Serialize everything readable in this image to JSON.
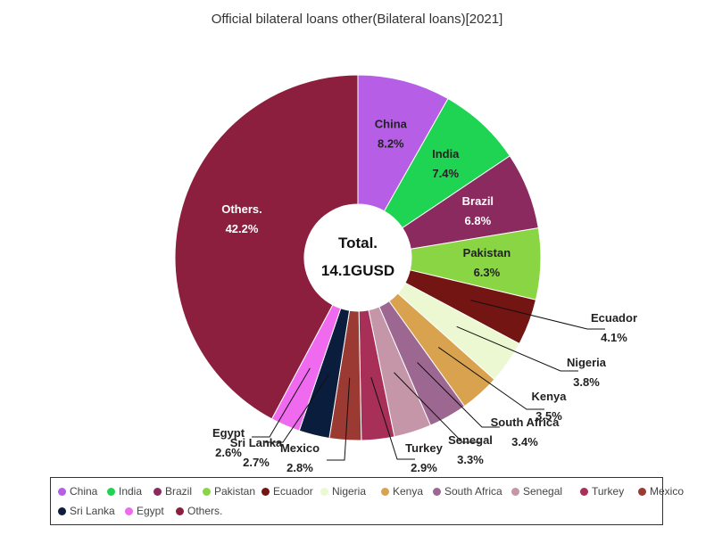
{
  "chart_data": {
    "type": "pie",
    "title": "Official bilateral loans other(Bilateral loans)[2021]",
    "center_label": "Total.",
    "center_value": "14.1GUSD",
    "legend_position": "bottom",
    "slices": [
      {
        "name": "China",
        "label": "China",
        "value": 8.2,
        "pct": "8.2%",
        "color": "#b65ee6"
      },
      {
        "name": "India",
        "label": "India",
        "value": 7.4,
        "pct": "7.4%",
        "color": "#1ed452"
      },
      {
        "name": "Brazil",
        "label": "Brazil",
        "value": 6.8,
        "pct": "6.8%",
        "color": "#8b2a5e"
      },
      {
        "name": "Pakistan",
        "label": "Pakistan",
        "value": 6.3,
        "pct": "6.3%",
        "color": "#8ad544"
      },
      {
        "name": "Ecuador",
        "label": "Ecuador",
        "value": 4.1,
        "pct": "4.1%",
        "color": "#731513"
      },
      {
        "name": "Nigeria",
        "label": "Nigeria",
        "value": 3.8,
        "pct": "3.8%",
        "color": "#ecf8d2"
      },
      {
        "name": "Kenya",
        "label": "Kenya",
        "value": 3.5,
        "pct": "3.5%",
        "color": "#d8a24e"
      },
      {
        "name": "South Africa",
        "label": "South Africa",
        "value": 3.4,
        "pct": "3.4%",
        "color": "#9c6891"
      },
      {
        "name": "Senegal",
        "label": "Senegal",
        "value": 3.3,
        "pct": "3.3%",
        "color": "#c595a8"
      },
      {
        "name": "Turkey",
        "label": "Turkey",
        "value": 2.9,
        "pct": "2.9%",
        "color": "#a82f57"
      },
      {
        "name": "Mexico",
        "label": "Mexico",
        "value": 2.8,
        "pct": "2.8%",
        "color": "#9b3a32"
      },
      {
        "name": "Sri Lanka",
        "label": "Sri Lanka",
        "value": 2.7,
        "pct": "2.7%",
        "color": "#0b1d3d"
      },
      {
        "name": "Egypt",
        "label": "Egypt",
        "value": 2.6,
        "pct": "2.6%",
        "color": "#ef6aef"
      },
      {
        "name": "Others.",
        "label": "Others.",
        "value": 42.2,
        "pct": "42.2%",
        "color": "#8b1f3d"
      }
    ]
  }
}
